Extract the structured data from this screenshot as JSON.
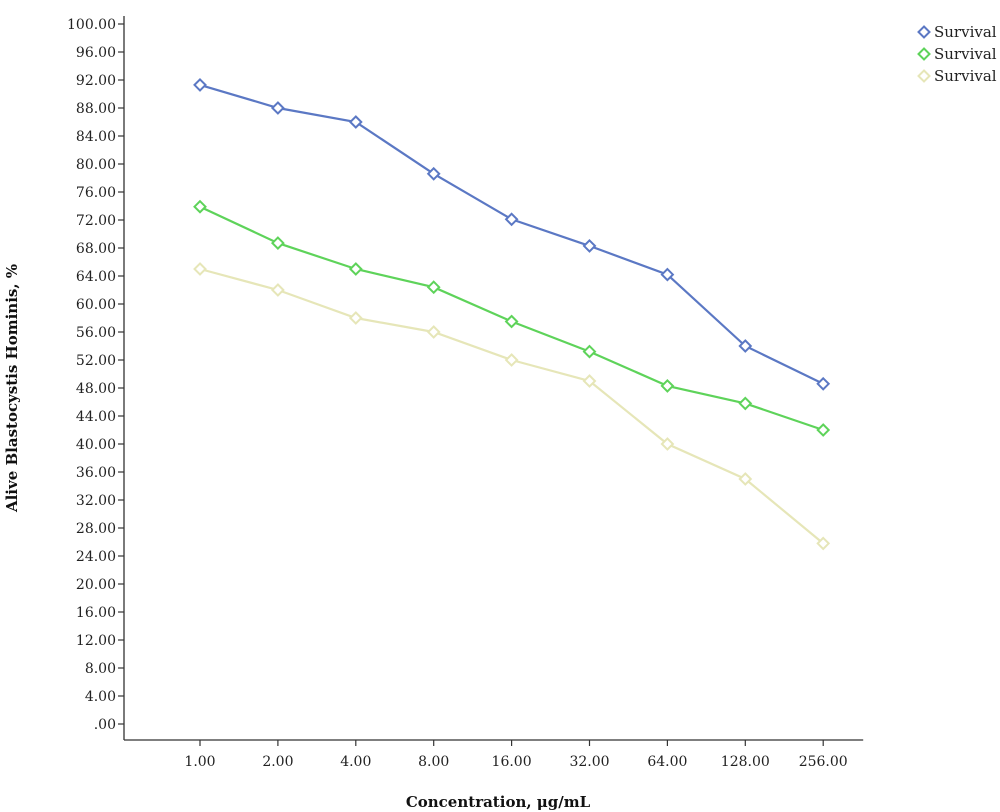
{
  "chart_data": {
    "type": "line",
    "title": "",
    "xlabel": "Concentration, μg/mL",
    "ylabel": "Alive Blastocystis Hominis, %",
    "categories": [
      "1.00",
      "2.00",
      "4.00",
      "8.00",
      "16.00",
      "32.00",
      "64.00",
      "128.00",
      "256.00"
    ],
    "ylim": [
      0,
      100
    ],
    "yticks": [
      ".00",
      "4.00",
      "8.00",
      "12.00",
      "16.00",
      "20.00",
      "24.00",
      "28.00",
      "32.00",
      "36.00",
      "40.00",
      "44.00",
      "48.00",
      "52.00",
      "56.00",
      "60.00",
      "64.00",
      "68.00",
      "72.00",
      "76.00",
      "80.00",
      "84.00",
      "88.00",
      "92.00",
      "96.00",
      "100.00"
    ],
    "ytick_values": [
      0,
      4,
      8,
      12,
      16,
      20,
      24,
      28,
      32,
      36,
      40,
      44,
      48,
      52,
      56,
      60,
      64,
      68,
      72,
      76,
      80,
      84,
      88,
      92,
      96,
      100
    ],
    "grid": false,
    "legend_position": "top-right",
    "series": [
      {
        "name": "Survival",
        "color": "#5b78c4",
        "values": [
          91.3,
          88.0,
          86.0,
          78.6,
          72.1,
          68.3,
          64.2,
          54.0,
          48.6
        ]
      },
      {
        "name": "Survival",
        "color": "#5ed35a",
        "values": [
          73.9,
          68.7,
          65.0,
          62.4,
          57.5,
          53.2,
          48.3,
          45.8,
          42.0
        ]
      },
      {
        "name": "Survival",
        "color": "#e6e6b8",
        "values": [
          65.0,
          62.0,
          58.0,
          56.0,
          52.0,
          49.0,
          40.0,
          35.0,
          25.8
        ]
      }
    ]
  }
}
